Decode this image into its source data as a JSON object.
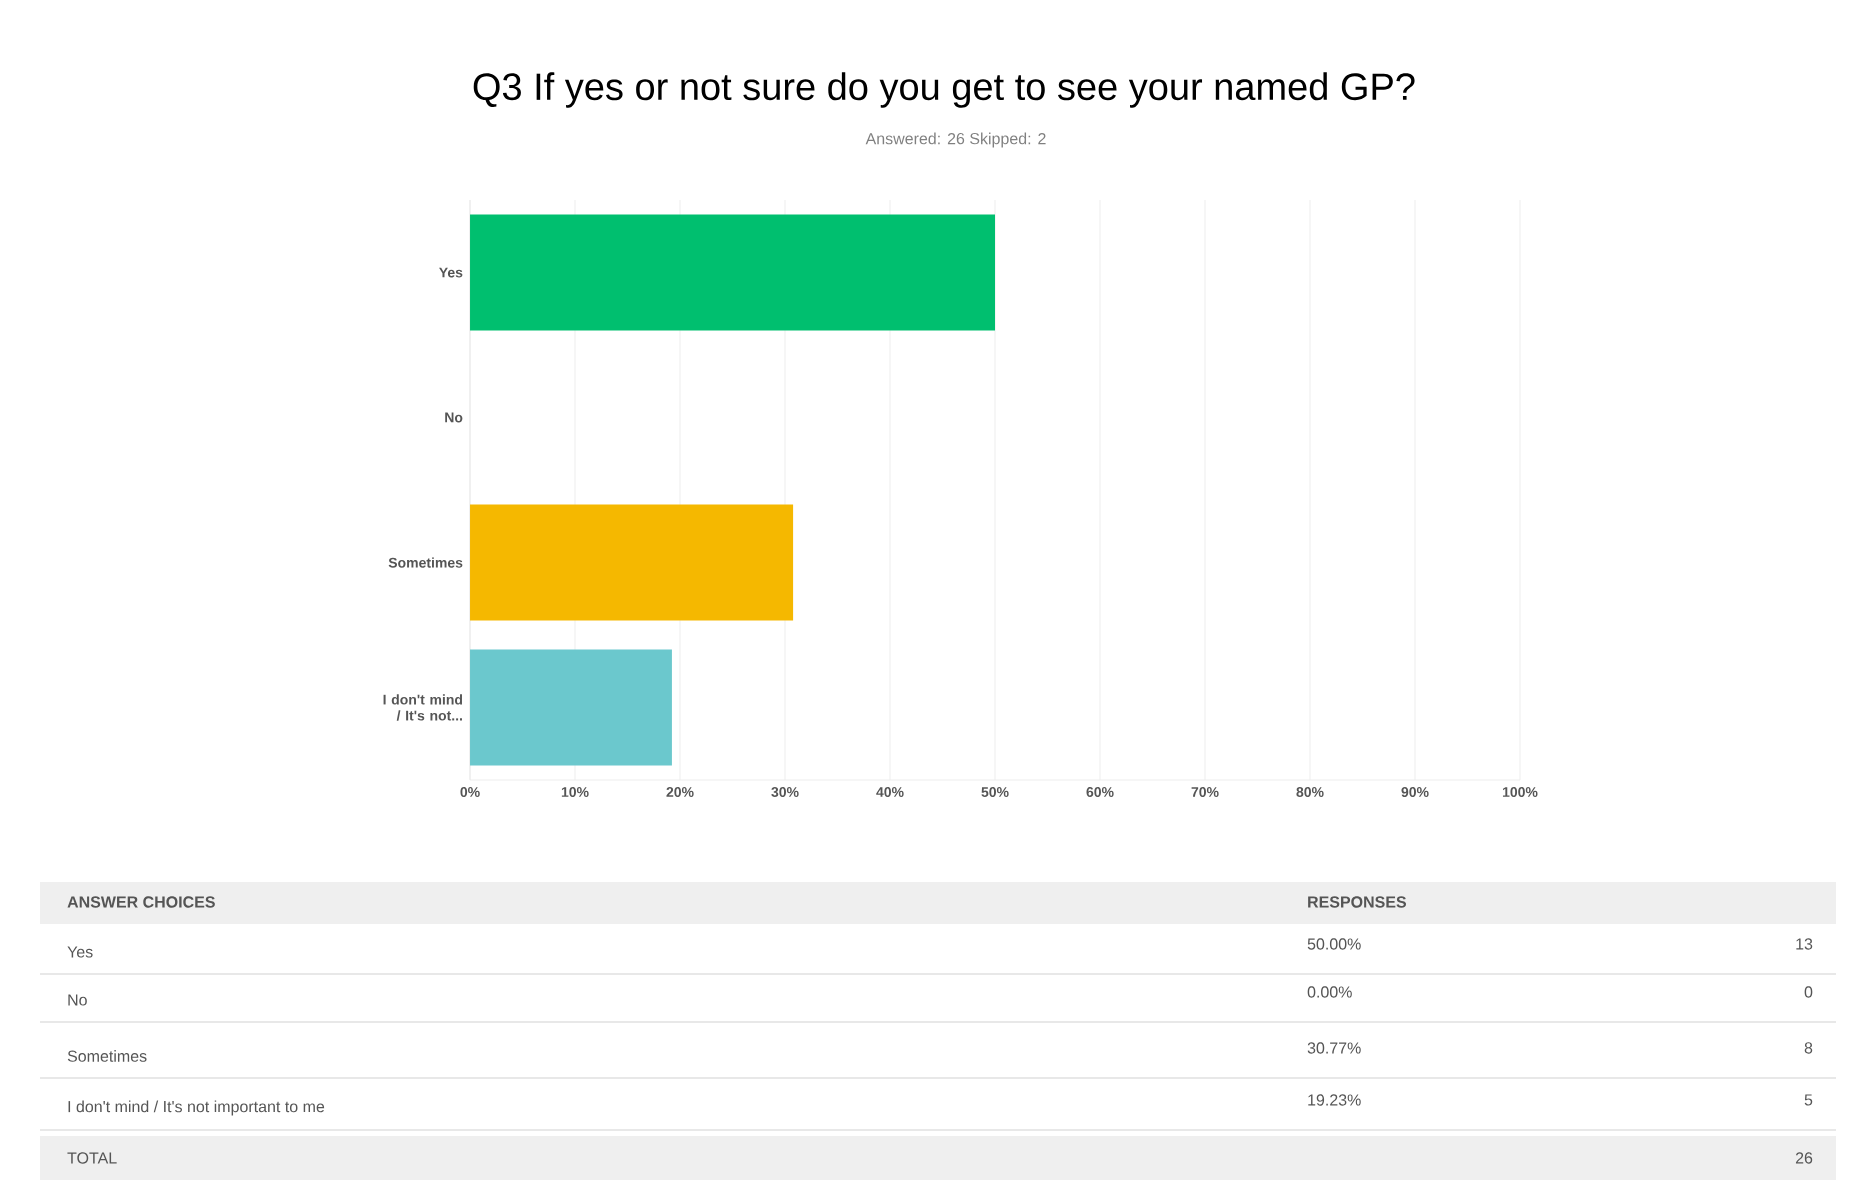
{
  "chart_data": {
    "type": "bar",
    "orientation": "horizontal",
    "title": "Q3 If yes or not sure do you get to see your named GP?",
    "subtitle": "Answered: 26    Skipped: 2",
    "categories": [
      "Yes",
      "No",
      "Sometimes",
      "I don't mind / It's not..."
    ],
    "values": [
      50.0,
      0.0,
      30.77,
      19.23
    ],
    "colors": [
      "#00bf6f",
      "#a3a3a3",
      "#f5b800",
      "#6bc8cd"
    ],
    "xlim": [
      0,
      100
    ],
    "xticks": [
      {
        "value": 0,
        "label": "0%"
      },
      {
        "value": 10,
        "label": "10%"
      },
      {
        "value": 20,
        "label": "20%"
      },
      {
        "value": 30,
        "label": "30%"
      },
      {
        "value": 40,
        "label": "40%"
      },
      {
        "value": 50,
        "label": "50%"
      },
      {
        "value": 60,
        "label": "60%"
      },
      {
        "value": 70,
        "label": "70%"
      },
      {
        "value": 80,
        "label": "80%"
      },
      {
        "value": 90,
        "label": "90%"
      },
      {
        "value": 100,
        "label": "100%"
      }
    ],
    "grid": "x",
    "annotations": [
      "ANSWER CHOICES",
      "RESPONSES",
      "Yes",
      "No",
      "Sometimes",
      "I don't mind / It's not important to me",
      "13",
      "0",
      "8",
      "5",
      "TOTAL",
      "26",
      "50.00%",
      "0.00%",
      "30.77%",
      "19.23%"
    ]
  }
}
